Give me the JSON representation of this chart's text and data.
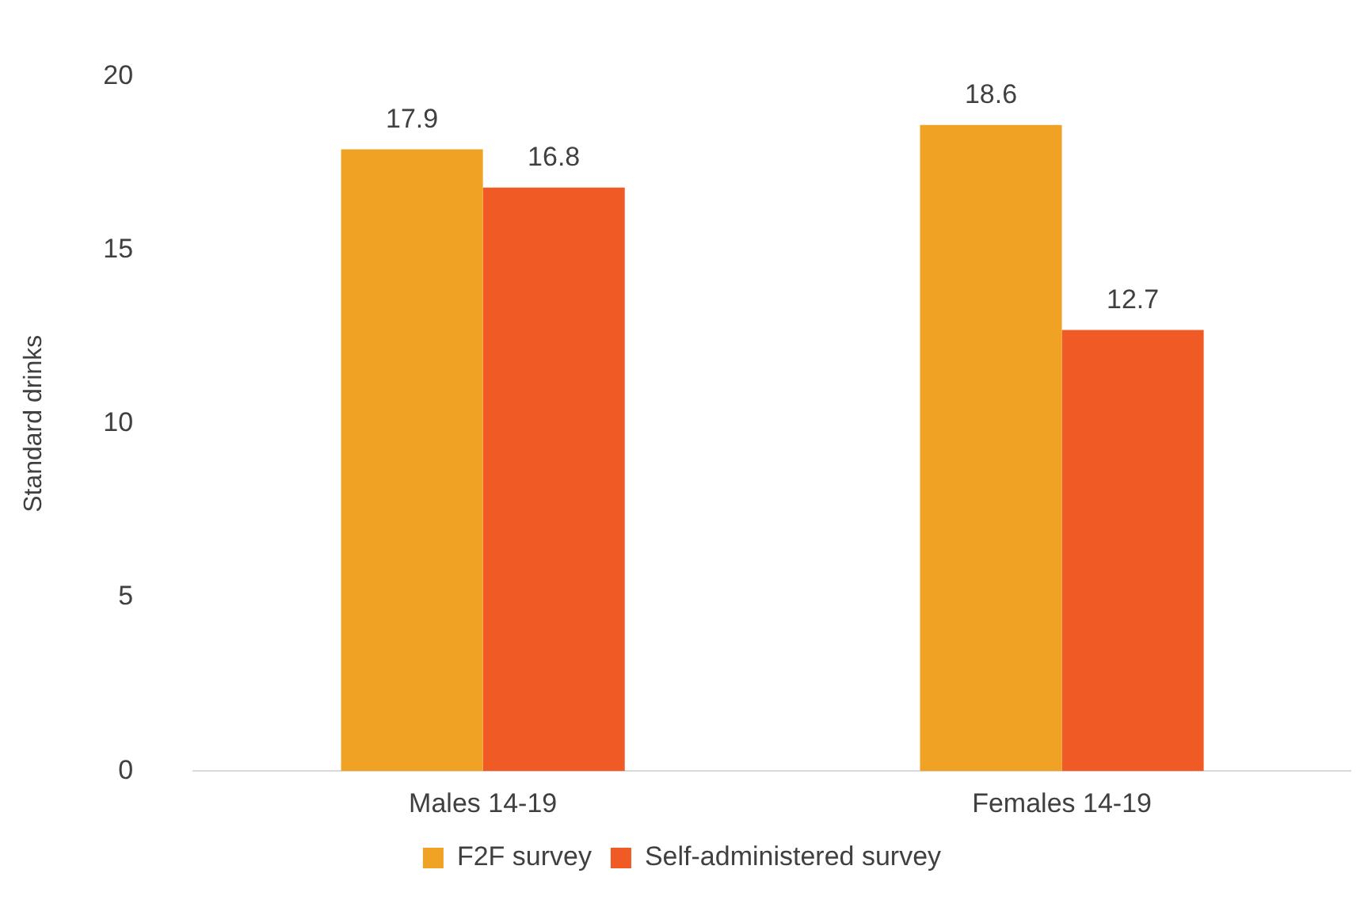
{
  "chart_data": {
    "type": "bar",
    "ylabel": "Standard drinks",
    "categories": [
      "Males 14-19",
      "Females 14-19"
    ],
    "series": [
      {
        "name": "F2F survey",
        "color": "#f0a224",
        "values": [
          17.9,
          18.6
        ]
      },
      {
        "name": "Self-administered survey",
        "color": "#f05a24",
        "values": [
          16.8,
          12.7
        ]
      }
    ],
    "ylim": [
      0,
      20
    ],
    "yticks": [
      0,
      5,
      10,
      15,
      20
    ],
    "grid": false,
    "legend": "bottom",
    "data_labels": true
  }
}
